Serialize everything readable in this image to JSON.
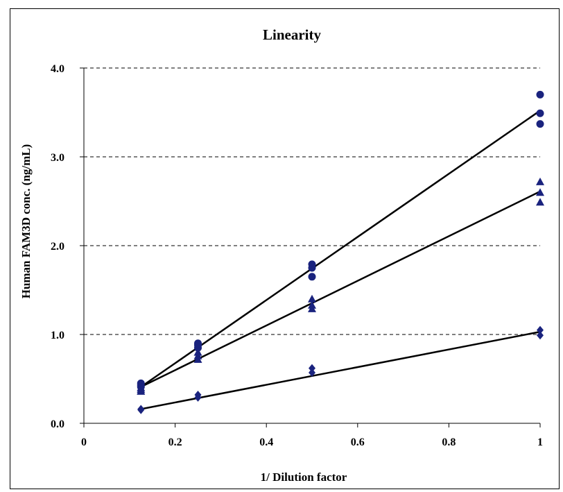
{
  "chart_data": {
    "type": "scatter",
    "title": "Linearity",
    "xlabel": "1/ Dilution factor",
    "ylabel": "Human FAM3D conc. (ng/mL)",
    "xlim": [
      0,
      1
    ],
    "ylim": [
      0,
      4
    ],
    "x_ticks": [
      0,
      0.2,
      0.4,
      0.6,
      0.8,
      1
    ],
    "x_tick_labels": [
      "0",
      "0.2",
      "0.4",
      "0.6",
      "0.8",
      "1"
    ],
    "y_ticks": [
      0,
      1,
      2,
      3,
      4
    ],
    "y_tick_labels": [
      "0.0",
      "1.0",
      "2.0",
      "3.0",
      "4.0"
    ],
    "grid": "horizontal dashed",
    "legend": "none",
    "colors": {
      "marker": "#1a237e",
      "line": "#000000"
    },
    "series": [
      {
        "marker": "circle",
        "points": [
          [
            0.125,
            0.45
          ],
          [
            0.125,
            0.43
          ],
          [
            0.125,
            0.41
          ],
          [
            0.25,
            0.9
          ],
          [
            0.25,
            0.88
          ],
          [
            0.25,
            0.85
          ],
          [
            0.5,
            1.79
          ],
          [
            0.5,
            1.75
          ],
          [
            0.5,
            1.65
          ],
          [
            1,
            3.7
          ],
          [
            1,
            3.49
          ],
          [
            1,
            3.37
          ]
        ],
        "fit": [
          [
            0.125,
            0.41
          ],
          [
            1,
            3.52
          ]
        ]
      },
      {
        "marker": "triangle",
        "points": [
          [
            0.125,
            0.4
          ],
          [
            0.125,
            0.38
          ],
          [
            0.125,
            0.36
          ],
          [
            0.25,
            0.8
          ],
          [
            0.25,
            0.76
          ],
          [
            0.25,
            0.72
          ],
          [
            0.5,
            1.4
          ],
          [
            0.5,
            1.33
          ],
          [
            0.5,
            1.29
          ],
          [
            1,
            2.72
          ],
          [
            1,
            2.6
          ],
          [
            1,
            2.49
          ]
        ],
        "fit": [
          [
            0.125,
            0.41
          ],
          [
            1,
            2.61
          ]
        ]
      },
      {
        "marker": "diamond",
        "points": [
          [
            0.125,
            0.16
          ],
          [
            0.125,
            0.15
          ],
          [
            0.25,
            0.32
          ],
          [
            0.25,
            0.29
          ],
          [
            0.5,
            0.62
          ],
          [
            0.5,
            0.57
          ],
          [
            1,
            1.05
          ],
          [
            1,
            0.99
          ]
        ],
        "fit": [
          [
            0.125,
            0.16
          ],
          [
            1,
            1.03
          ]
        ]
      }
    ]
  }
}
